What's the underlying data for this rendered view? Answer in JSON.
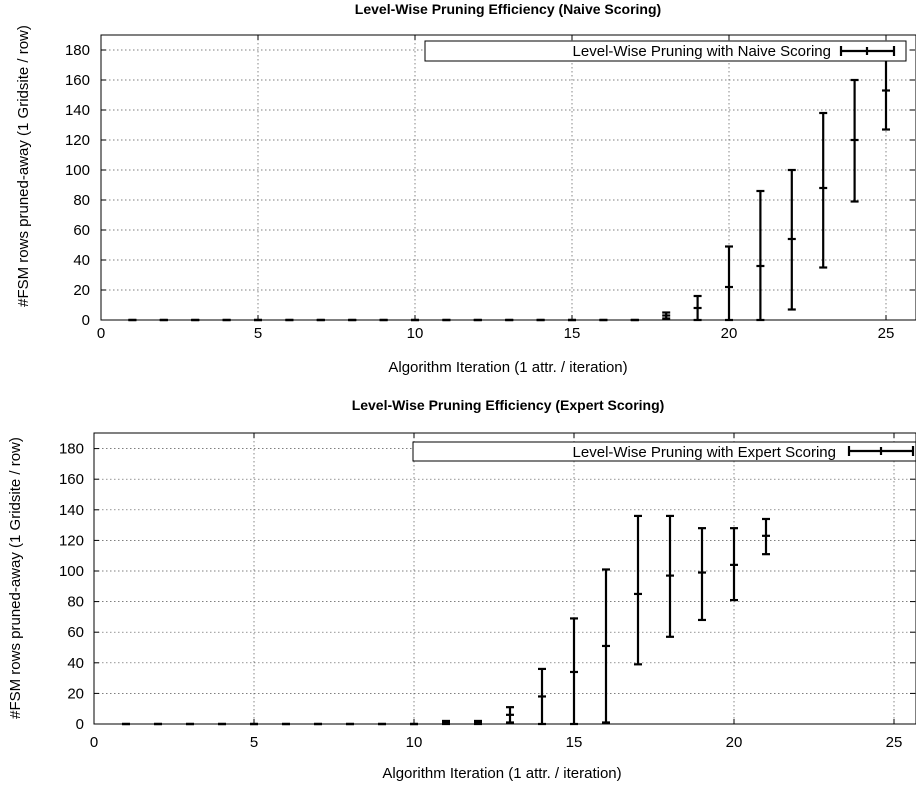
{
  "chart_data": [
    {
      "type": "errorbar",
      "title": "Level-Wise Pruning Efficiency (Naive Scoring)",
      "xlabel": "Algorithm Iteration (1 attr. / iteration)",
      "ylabel": "#FSM rows pruned-away (1 Gridsite / row)",
      "xlim": [
        0,
        26
      ],
      "ylim": [
        0,
        190
      ],
      "xticks": [
        0,
        5,
        10,
        15,
        20,
        25
      ],
      "yticks": [
        0,
        20,
        40,
        60,
        80,
        100,
        120,
        140,
        160,
        180
      ],
      "grid": true,
      "legend_position": "top-right",
      "series": [
        {
          "name": "Level-Wise Pruning with Naive Scoring",
          "points": [
            {
              "x": 1,
              "y": 0,
              "low": 0,
              "high": 0
            },
            {
              "x": 2,
              "y": 0,
              "low": 0,
              "high": 0
            },
            {
              "x": 3,
              "y": 0,
              "low": 0,
              "high": 0
            },
            {
              "x": 4,
              "y": 0,
              "low": 0,
              "high": 0
            },
            {
              "x": 5,
              "y": 0,
              "low": 0,
              "high": 0
            },
            {
              "x": 6,
              "y": 0,
              "low": 0,
              "high": 0
            },
            {
              "x": 7,
              "y": 0,
              "low": 0,
              "high": 0
            },
            {
              "x": 8,
              "y": 0,
              "low": 0,
              "high": 0
            },
            {
              "x": 9,
              "y": 0,
              "low": 0,
              "high": 0
            },
            {
              "x": 10,
              "y": 0,
              "low": 0,
              "high": 0
            },
            {
              "x": 11,
              "y": 0,
              "low": 0,
              "high": 0
            },
            {
              "x": 12,
              "y": 0,
              "low": 0,
              "high": 0
            },
            {
              "x": 13,
              "y": 0,
              "low": 0,
              "high": 0
            },
            {
              "x": 14,
              "y": 0,
              "low": 0,
              "high": 0
            },
            {
              "x": 15,
              "y": 0,
              "low": 0,
              "high": 0
            },
            {
              "x": 16,
              "y": 0,
              "low": 0,
              "high": 0
            },
            {
              "x": 17,
              "y": 0,
              "low": 0,
              "high": 0
            },
            {
              "x": 18,
              "y": 3,
              "low": 1,
              "high": 5
            },
            {
              "x": 19,
              "y": 8,
              "low": 0,
              "high": 16
            },
            {
              "x": 20,
              "y": 22,
              "low": 0,
              "high": 49
            },
            {
              "x": 21,
              "y": 36,
              "low": 0,
              "high": 86
            },
            {
              "x": 22,
              "y": 54,
              "low": 7,
              "high": 100
            },
            {
              "x": 23,
              "y": 88,
              "low": 35,
              "high": 138
            },
            {
              "x": 24,
              "y": 120,
              "low": 79,
              "high": 160
            },
            {
              "x": 25,
              "y": 153,
              "low": 127,
              "high": 174
            }
          ]
        }
      ]
    },
    {
      "type": "errorbar",
      "title": "Level-Wise Pruning Efficiency (Expert Scoring)",
      "xlabel": "Algorithm Iteration (1 attr. / iteration)",
      "ylabel": "#FSM rows pruned-away (1 Gridsite / row)",
      "xlim": [
        0,
        26
      ],
      "ylim": [
        0,
        190
      ],
      "xticks": [
        0,
        5,
        10,
        15,
        20,
        25
      ],
      "yticks": [
        0,
        20,
        40,
        60,
        80,
        100,
        120,
        140,
        160,
        180
      ],
      "grid": true,
      "legend_position": "top-right",
      "series": [
        {
          "name": "Level-Wise Pruning with Expert Scoring",
          "points": [
            {
              "x": 1,
              "y": 0,
              "low": 0,
              "high": 0
            },
            {
              "x": 2,
              "y": 0,
              "low": 0,
              "high": 0
            },
            {
              "x": 3,
              "y": 0,
              "low": 0,
              "high": 0
            },
            {
              "x": 4,
              "y": 0,
              "low": 0,
              "high": 0
            },
            {
              "x": 5,
              "y": 0,
              "low": 0,
              "high": 0
            },
            {
              "x": 6,
              "y": 0,
              "low": 0,
              "high": 0
            },
            {
              "x": 7,
              "y": 0,
              "low": 0,
              "high": 0
            },
            {
              "x": 8,
              "y": 0,
              "low": 0,
              "high": 0
            },
            {
              "x": 9,
              "y": 0,
              "low": 0,
              "high": 0
            },
            {
              "x": 10,
              "y": 0,
              "low": 0,
              "high": 0
            },
            {
              "x": 11,
              "y": 1,
              "low": 0,
              "high": 2
            },
            {
              "x": 12,
              "y": 1,
              "low": 0,
              "high": 2
            },
            {
              "x": 13,
              "y": 6,
              "low": 1,
              "high": 11
            },
            {
              "x": 14,
              "y": 18,
              "low": 0,
              "high": 36
            },
            {
              "x": 15,
              "y": 34,
              "low": 0,
              "high": 69
            },
            {
              "x": 16,
              "y": 51,
              "low": 1,
              "high": 101
            },
            {
              "x": 17,
              "y": 85,
              "low": 39,
              "high": 136
            },
            {
              "x": 18,
              "y": 97,
              "low": 57,
              "high": 136
            },
            {
              "x": 19,
              "y": 99,
              "low": 68,
              "high": 128
            },
            {
              "x": 20,
              "y": 104,
              "low": 81,
              "high": 128
            },
            {
              "x": 21,
              "y": 123,
              "low": 111,
              "high": 134
            }
          ]
        }
      ]
    }
  ]
}
